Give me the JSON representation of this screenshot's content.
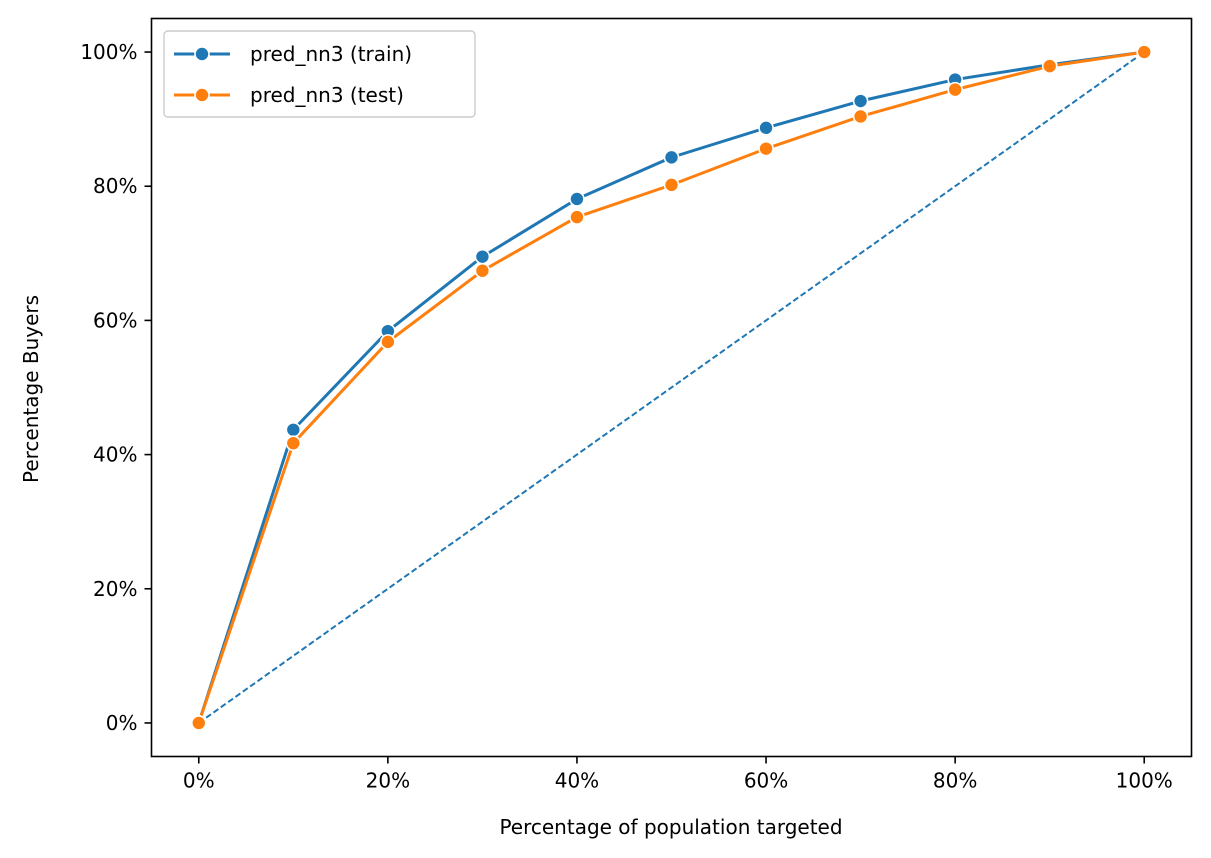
{
  "chart_data": {
    "type": "line",
    "title": "",
    "xlabel": "Percentage of population targeted",
    "ylabel": "Percentage Buyers",
    "x": [
      0,
      0.1,
      0.2,
      0.3,
      0.4,
      0.5,
      0.6,
      0.7,
      0.8,
      0.9,
      1.0
    ],
    "xlim": [
      -0.05,
      1.05
    ],
    "ylim": [
      -0.05,
      1.05
    ],
    "x_ticks": [
      0,
      0.2,
      0.4,
      0.6,
      0.8,
      1.0
    ],
    "x_tick_labels": [
      "0%",
      "20%",
      "40%",
      "60%",
      "80%",
      "100%"
    ],
    "y_ticks": [
      0,
      0.2,
      0.4,
      0.6,
      0.8,
      1.0
    ],
    "y_tick_labels": [
      "0%",
      "20%",
      "40%",
      "60%",
      "80%",
      "100%"
    ],
    "grid": false,
    "legend_position": "upper-left",
    "series": [
      {
        "name": "pred_nn3 (train)",
        "color": "#1f77b4",
        "marker": "circle",
        "values": [
          0,
          0.437,
          0.584,
          0.695,
          0.781,
          0.843,
          0.887,
          0.927,
          0.959,
          0.981,
          1.0
        ]
      },
      {
        "name": "pred_nn3 (test)",
        "color": "#ff7f0e",
        "marker": "circle",
        "values": [
          0,
          0.417,
          0.568,
          0.674,
          0.754,
          0.802,
          0.856,
          0.904,
          0.944,
          0.979,
          1.0
        ]
      }
    ],
    "reference_line": {
      "style": "dashed",
      "color": "#1f77b4",
      "x": [
        0,
        1.0
      ],
      "y": [
        0,
        1.0
      ]
    }
  }
}
